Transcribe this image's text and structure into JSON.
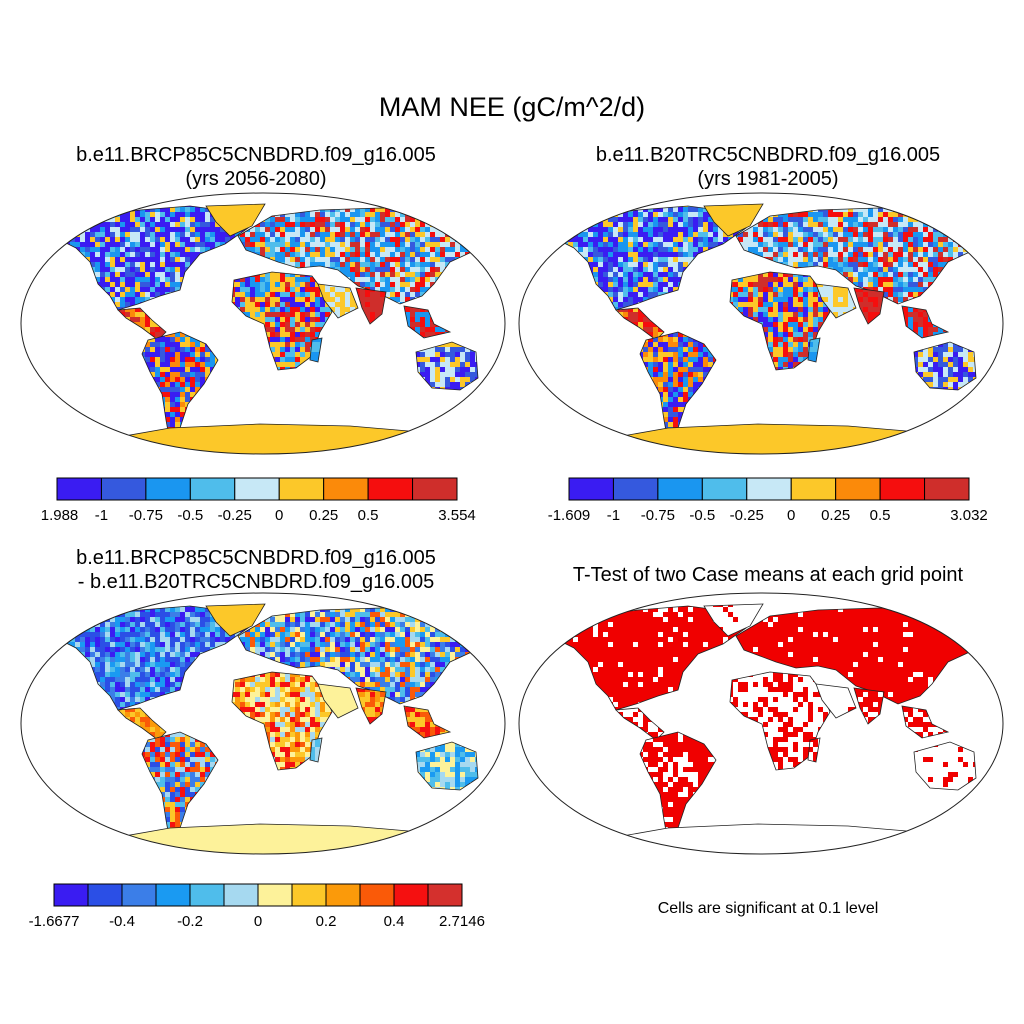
{
  "main_title": "MAM NEE (gC/m^2/d)",
  "panels": {
    "top_left": {
      "title_line1": "b.e11.BRCP85C5CNBDRD.f09_g16.005",
      "title_line2": "(yrs 2056-2080)",
      "colorbar": {
        "colors": [
          "#3a1cf2",
          "#3559de",
          "#1a96f0",
          "#4fbdeb",
          "#c7e8f6",
          "#fcc829",
          "#fb8a0a",
          "#f50e0e",
          "#cf2e2b"
        ],
        "labels": [
          "-1.988",
          "-1",
          "-0.75",
          "-0.5",
          "-0.25",
          "0",
          "0.25",
          "0.5",
          "3.554"
        ]
      }
    },
    "top_right": {
      "title_line1": "b.e11.B20TRC5CNBDRD.f09_g16.005",
      "title_line2": "(yrs 1981-2005)",
      "colorbar": {
        "colors": [
          "#3a1cf2",
          "#3559de",
          "#1a96f0",
          "#4fbdeb",
          "#c7e8f6",
          "#fcc829",
          "#fb8a0a",
          "#f50e0e",
          "#cf2e2b"
        ],
        "labels": [
          "-1.609",
          "-1",
          "-0.75",
          "-0.5",
          "-0.25",
          "0",
          "0.25",
          "0.5",
          "3.032"
        ]
      }
    },
    "bottom_left": {
      "title_line1": "b.e11.BRCP85C5CNBDRD.f09_g16.005",
      "title_line2": "- b.e11.B20TRC5CNBDRD.f09_g16.005",
      "colorbar": {
        "colors": [
          "#3a1cf2",
          "#2b4fe6",
          "#3b7ee8",
          "#1a9af2",
          "#4fbdeb",
          "#a6d9f0",
          "#fdf29a",
          "#fcc829",
          "#fb9a0a",
          "#fa5a08",
          "#f51010",
          "#d4302d"
        ],
        "labels": [
          "-1.6677",
          "-0.4",
          "-0.2",
          "0",
          "0.2",
          "0.4",
          "2.7146"
        ]
      }
    },
    "bottom_right": {
      "title_line1": "T-Test of two Case means at each grid point",
      "note": "Cells are significant at 0.1 level",
      "significant_color": "#f00000"
    }
  }
}
